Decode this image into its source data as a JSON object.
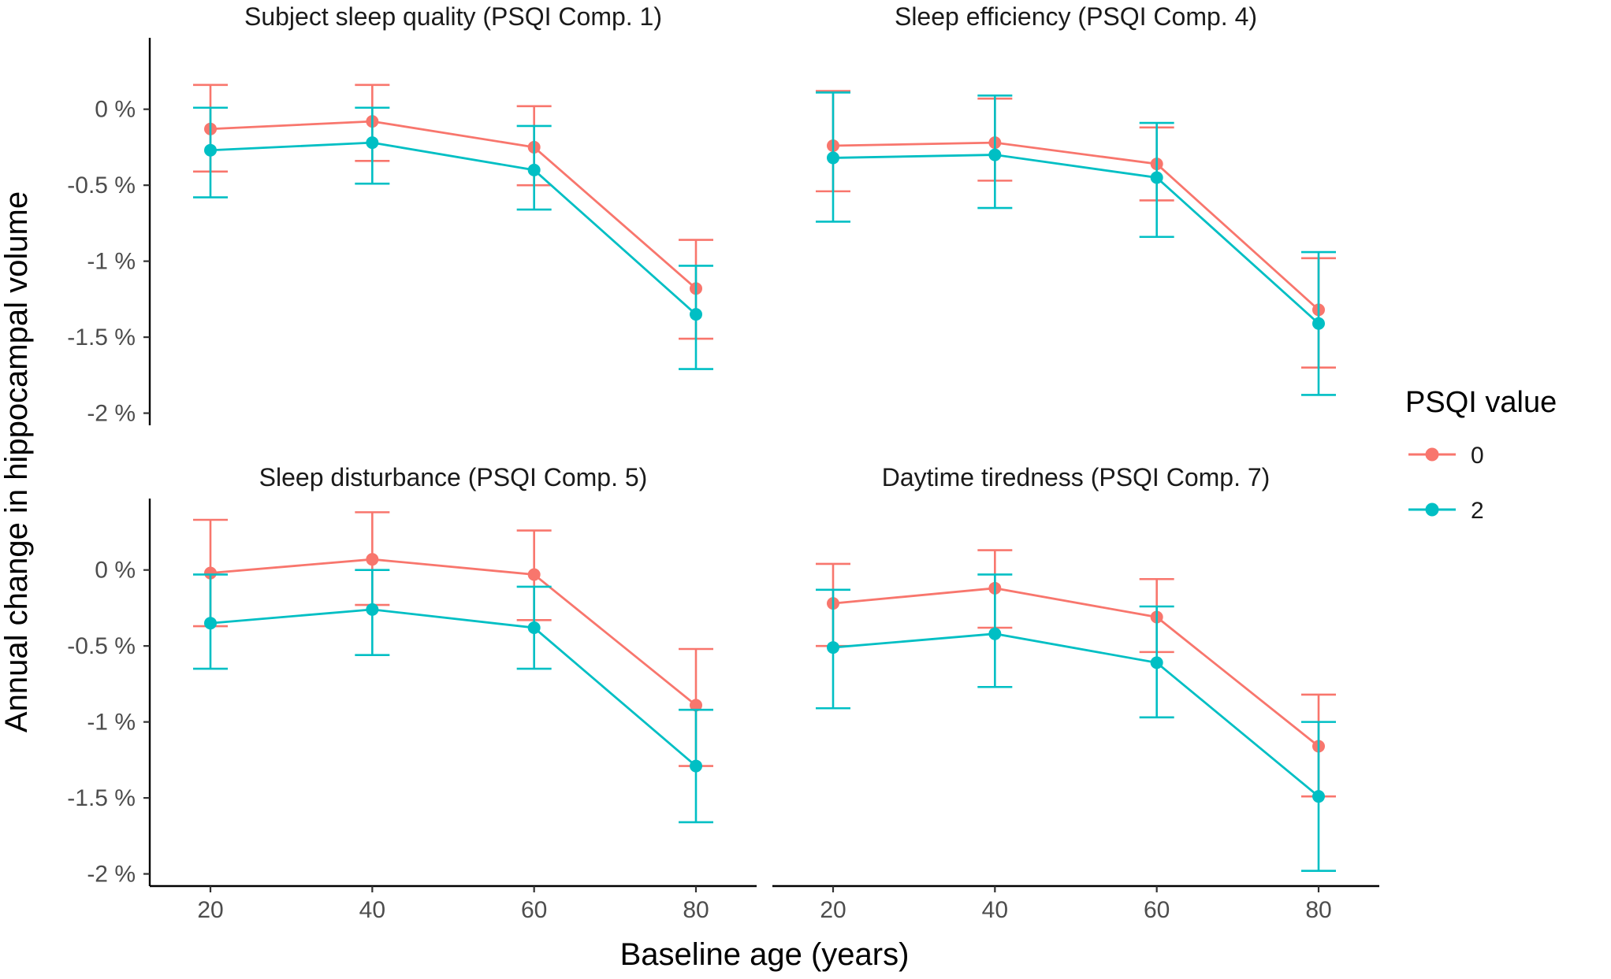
{
  "chart_data": {
    "type": "line",
    "facets": "2x2",
    "xlabel": "Baseline age (years)",
    "ylabel": "Annual change in hippocampal volume",
    "x_ticks": [
      "20",
      "40",
      "60",
      "80"
    ],
    "y_ticks": [
      "0 %",
      "-0.5 %",
      "-1 %",
      "-1.5 %",
      "-2 %"
    ],
    "y_tick_values": [
      0,
      -0.5,
      -1,
      -1.5,
      -2
    ],
    "x": [
      20,
      40,
      60,
      80
    ],
    "xlim": [
      12.5,
      87.5
    ],
    "ylim": [
      -2.08,
      0.47
    ],
    "legend": {
      "title": "PSQI value",
      "position": "right",
      "entries": [
        {
          "label": "0",
          "color": "#F8766D"
        },
        {
          "label": "2",
          "color": "#00BFC4"
        }
      ]
    },
    "panels": [
      {
        "title": "Subject sleep quality (PSQI Comp. 1)",
        "series": [
          {
            "name": "0",
            "color": "#F8766D",
            "values": [
              -0.13,
              -0.08,
              -0.25,
              -1.18
            ],
            "lower": [
              -0.41,
              -0.34,
              -0.5,
              -1.51
            ],
            "upper": [
              0.16,
              0.16,
              0.02,
              -0.86
            ]
          },
          {
            "name": "2",
            "color": "#00BFC4",
            "values": [
              -0.27,
              -0.22,
              -0.4,
              -1.35
            ],
            "lower": [
              -0.58,
              -0.49,
              -0.66,
              -1.71
            ],
            "upper": [
              0.01,
              0.01,
              -0.11,
              -1.03
            ]
          }
        ]
      },
      {
        "title": "Sleep efficiency (PSQI Comp. 4)",
        "series": [
          {
            "name": "0",
            "color": "#F8766D",
            "values": [
              -0.24,
              -0.22,
              -0.36,
              -1.32
            ],
            "lower": [
              -0.54,
              -0.47,
              -0.6,
              -1.7
            ],
            "upper": [
              0.12,
              0.07,
              -0.12,
              -0.98
            ]
          },
          {
            "name": "2",
            "color": "#00BFC4",
            "values": [
              -0.32,
              -0.3,
              -0.45,
              -1.41
            ],
            "lower": [
              -0.74,
              -0.65,
              -0.84,
              -1.88
            ],
            "upper": [
              0.11,
              0.09,
              -0.09,
              -0.94
            ]
          }
        ]
      },
      {
        "title": "Sleep disturbance (PSQI Comp. 5)",
        "series": [
          {
            "name": "0",
            "color": "#F8766D",
            "values": [
              -0.02,
              0.07,
              -0.03,
              -0.89
            ],
            "lower": [
              -0.37,
              -0.23,
              -0.33,
              -1.29
            ],
            "upper": [
              0.33,
              0.38,
              0.26,
              -0.52
            ]
          },
          {
            "name": "2",
            "color": "#00BFC4",
            "values": [
              -0.35,
              -0.26,
              -0.38,
              -1.29
            ],
            "lower": [
              -0.65,
              -0.56,
              -0.65,
              -1.66
            ],
            "upper": [
              -0.03,
              0.0,
              -0.11,
              -0.92
            ]
          }
        ]
      },
      {
        "title": "Daytime tiredness (PSQI Comp. 7)",
        "series": [
          {
            "name": "0",
            "color": "#F8766D",
            "values": [
              -0.22,
              -0.12,
              -0.31,
              -1.16
            ],
            "lower": [
              -0.5,
              -0.38,
              -0.54,
              -1.49
            ],
            "upper": [
              0.04,
              0.13,
              -0.06,
              -0.82
            ]
          },
          {
            "name": "2",
            "color": "#00BFC4",
            "values": [
              -0.51,
              -0.42,
              -0.61,
              -1.49
            ],
            "lower": [
              -0.91,
              -0.77,
              -0.97,
              -1.98
            ],
            "upper": [
              -0.13,
              -0.03,
              -0.24,
              -1.0
            ]
          }
        ]
      }
    ]
  }
}
